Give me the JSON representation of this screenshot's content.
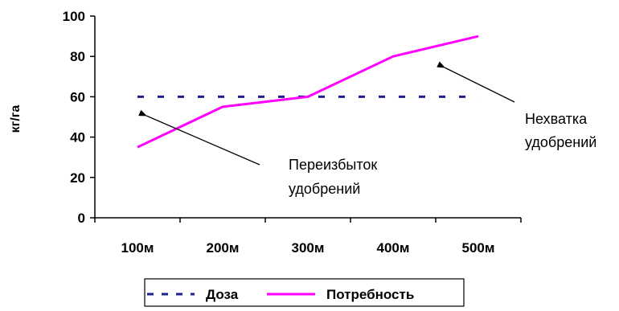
{
  "chart_data": {
    "type": "line",
    "categories": [
      "100м",
      "200м",
      "300м",
      "400м",
      "500м"
    ],
    "series": [
      {
        "name": "Доза",
        "values": [
          60,
          60,
          60,
          60,
          60
        ],
        "color": "#1f1f8f",
        "style": "dashed"
      },
      {
        "name": "Потребность",
        "values": [
          35,
          55,
          60,
          80,
          90
        ],
        "color": "#ff00ff",
        "style": "solid"
      }
    ],
    "ylabel": "кг/га",
    "yticks": [
      0,
      20,
      40,
      60,
      80,
      100
    ],
    "ylim": [
      0,
      100
    ],
    "grid": false,
    "legend_position": "bottom",
    "annotations": [
      {
        "lines": [
          "Переизбыток",
          "удобрений"
        ]
      },
      {
        "lines": [
          "Нехватка",
          "удобрений"
        ]
      }
    ]
  }
}
